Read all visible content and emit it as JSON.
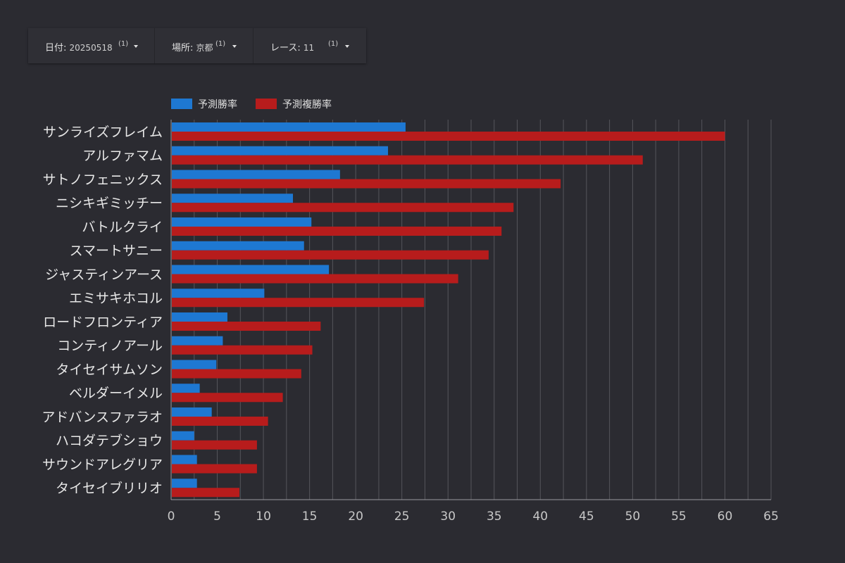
{
  "filters": [
    {
      "key": "日付",
      "value": "20250518",
      "count": "(1)"
    },
    {
      "key": "場所",
      "value": "京都",
      "count": "(1)"
    },
    {
      "key": "レース",
      "value": "11",
      "count": "(1)"
    }
  ],
  "colors": {
    "win": "#1e78d2",
    "place": "#b71c1c",
    "background": "#2b2b31",
    "grid": "#55555b"
  },
  "chart_data": {
    "type": "bar",
    "orientation": "horizontal",
    "categories": [
      "サンライズフレイム",
      "アルファマム",
      "サトノフェニックス",
      "ニシキギミッチー",
      "バトルクライ",
      "スマートサニー",
      "ジャスティンアース",
      "エミサキホコル",
      "ロードフロンティア",
      "コンティノアール",
      "タイセイサムソン",
      "ベルダーイメル",
      "アドバンスファラオ",
      "ハコダテブショウ",
      "サウンドアレグリア",
      "タイセイブリリオ"
    ],
    "series": [
      {
        "name": "予測勝率",
        "color": "#1e78d2",
        "values": [
          25.4,
          23.5,
          18.3,
          13.2,
          15.2,
          14.4,
          17.1,
          10.1,
          6.1,
          5.6,
          4.9,
          3.1,
          4.4,
          2.5,
          2.8,
          2.8
        ]
      },
      {
        "name": "予測複勝率",
        "color": "#b71c1c",
        "values": [
          60.0,
          51.1,
          42.2,
          37.1,
          35.8,
          34.4,
          31.1,
          27.4,
          16.2,
          15.3,
          14.1,
          12.1,
          10.5,
          9.3,
          9.3,
          7.4
        ]
      }
    ],
    "xticks": [
      "0",
      "5",
      "10",
      "15",
      "20",
      "25",
      "30",
      "35",
      "40",
      "45",
      "50",
      "55",
      "60",
      "65"
    ],
    "xlim": [
      0,
      65
    ],
    "grid": true,
    "legend_position": "top-left"
  }
}
